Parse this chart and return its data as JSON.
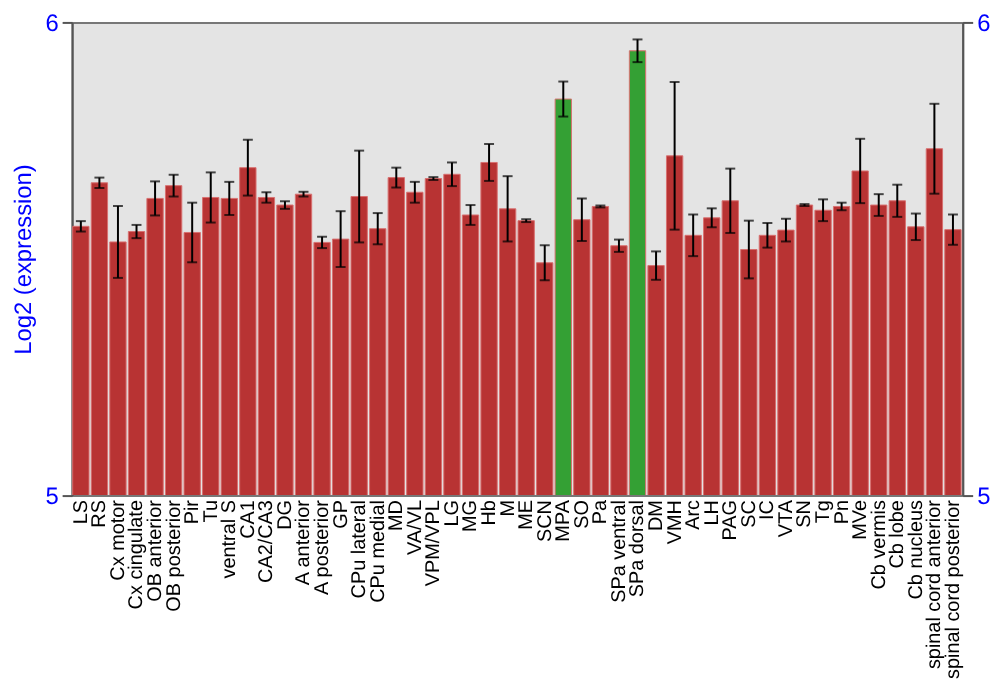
{
  "chart_data": {
    "type": "bar",
    "ylabel": "Log2 (expression)",
    "categories": [
      "LS",
      "RS",
      "Cx motor",
      "Cx cingulate",
      "OB anterior",
      "OB posterior",
      "Pir",
      "Tu",
      "ventral S",
      "CA1",
      "CA2/CA3",
      "DG",
      "A anterior",
      "A posterior",
      "GP",
      "CPu lateral",
      "CPu medial",
      "MD",
      "VA/VL",
      "VPM/VPL",
      "LG",
      "MG",
      "Hb",
      "M",
      "ME",
      "SCN",
      "MPA",
      "SO",
      "Pa",
      "SPa ventral",
      "SPa dorsal",
      "DM",
      "VMH",
      "Arc",
      "LH",
      "PAG",
      "SC",
      "IC",
      "VTA",
      "SN",
      "Tg",
      "Pn",
      "MVe",
      "Cb vermis",
      "Cb lobe",
      "Cb nucleus",
      "spinal cord anterior",
      "spinal cord posterior"
    ],
    "values": [
      5.568,
      5.66,
      5.535,
      5.557,
      5.627,
      5.654,
      5.555,
      5.629,
      5.627,
      5.692,
      5.629,
      5.613,
      5.636,
      5.534,
      5.541,
      5.631,
      5.563,
      5.671,
      5.64,
      5.669,
      5.678,
      5.592,
      5.703,
      5.605,
      5.58,
      5.491,
      5.837,
      5.582,
      5.61,
      5.527,
      5.939,
      5.485,
      5.717,
      5.549,
      5.586,
      5.622,
      5.519,
      5.549,
      5.56,
      5.613,
      5.602,
      5.61,
      5.685,
      5.613,
      5.622,
      5.567,
      5.732,
      5.561
    ],
    "errors": [
      0.011,
      0.011,
      0.076,
      0.014,
      0.036,
      0.023,
      0.063,
      0.053,
      0.035,
      0.059,
      0.011,
      0.008,
      0.005,
      0.012,
      0.059,
      0.097,
      0.033,
      0.021,
      0.022,
      0.003,
      0.025,
      0.021,
      0.039,
      0.069,
      0.003,
      0.037,
      0.037,
      0.045,
      0.002,
      0.013,
      0.024,
      0.03,
      0.156,
      0.044,
      0.02,
      0.068,
      0.061,
      0.026,
      0.024,
      0.002,
      0.023,
      0.008,
      0.068,
      0.023,
      0.034,
      0.028,
      0.095,
      0.032
    ],
    "colors": [
      "#b83333",
      "#b83333",
      "#b83333",
      "#b83333",
      "#b83333",
      "#b83333",
      "#b83333",
      "#b83333",
      "#b83333",
      "#b83333",
      "#b83333",
      "#b83333",
      "#b83333",
      "#b83333",
      "#b83333",
      "#b83333",
      "#b83333",
      "#b83333",
      "#b83333",
      "#b83333",
      "#b83333",
      "#b83333",
      "#b83333",
      "#b83333",
      "#b83333",
      "#b83333",
      "#34a034",
      "#b83333",
      "#b83333",
      "#b83333",
      "#34a034",
      "#b83333",
      "#b83333",
      "#b83333",
      "#b83333",
      "#b83333",
      "#b83333",
      "#b83333",
      "#b83333",
      "#b83333",
      "#b83333",
      "#b83333",
      "#b83333",
      "#b83333",
      "#b83333",
      "#b83333",
      "#b83333",
      "#b83333"
    ],
    "ylim": [
      5,
      6
    ],
    "yticks": [
      5,
      6
    ],
    "y2lim": [
      5,
      6
    ],
    "y2ticks": [
      5,
      6
    ]
  }
}
